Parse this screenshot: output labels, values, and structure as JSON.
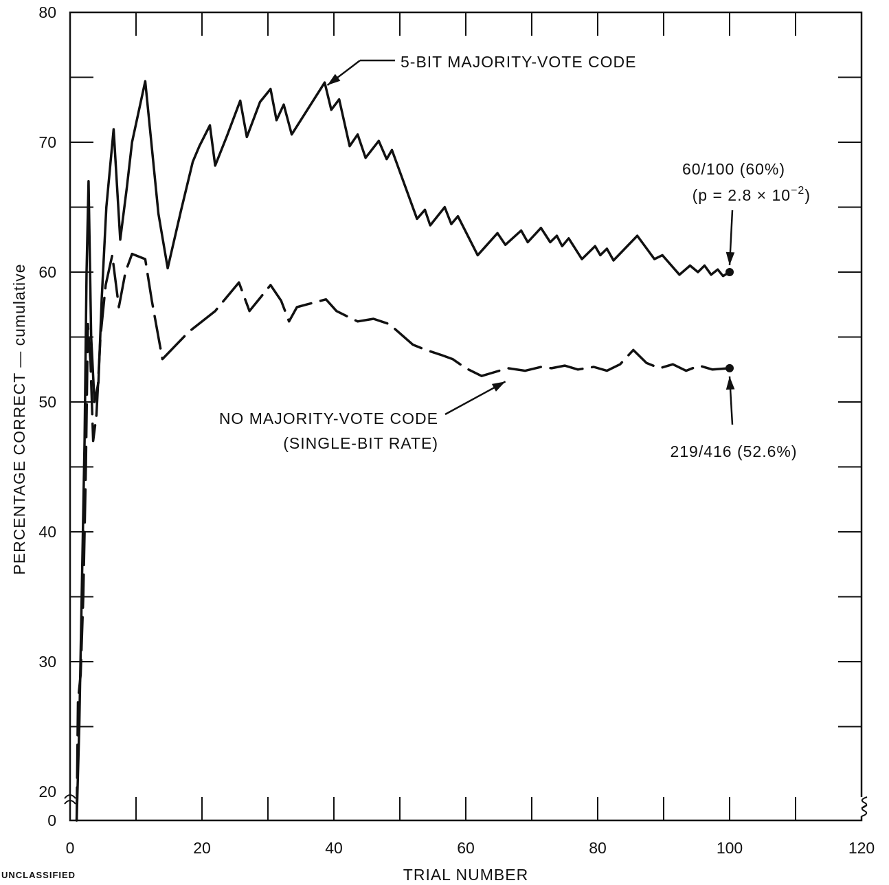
{
  "chart_data": {
    "type": "line",
    "title": "",
    "xlabel": "TRIAL NUMBER",
    "ylabel": "PERCENTAGE CORRECT — cumulative",
    "xlim": [
      0,
      120
    ],
    "ylim_display": [
      20,
      80
    ],
    "y_axis_break": "axis broken between 0 and 20",
    "x_ticks": [
      "0",
      "20",
      "40",
      "60",
      "80",
      "100",
      "120"
    ],
    "y_ticks": [
      "0",
      "20",
      "30",
      "40",
      "50",
      "60",
      "70",
      "80"
    ],
    "grid": false,
    "corner_note": "UNCLASSIFIED",
    "series": [
      {
        "name": "5-BIT MAJORITY-VOTE CODE",
        "style": "solid",
        "points": [
          [
            1,
            0
          ],
          [
            1.4,
            25
          ],
          [
            2.2,
            47
          ],
          [
            2.5,
            60
          ],
          [
            2.8,
            67
          ],
          [
            3.2,
            55
          ],
          [
            3.7,
            50
          ],
          [
            4.3,
            51.5
          ],
          [
            4.8,
            58
          ],
          [
            5.5,
            65
          ],
          [
            6.6,
            71
          ],
          [
            7.6,
            62.5
          ],
          [
            8.6,
            66.5
          ],
          [
            9.4,
            70
          ],
          [
            11.4,
            74.7
          ],
          [
            13.4,
            64.5
          ],
          [
            14.8,
            60.3
          ],
          [
            16.8,
            64.7
          ],
          [
            18.6,
            68.5
          ],
          [
            19.6,
            69.7
          ],
          [
            21.2,
            71.3
          ],
          [
            22.0,
            68.2
          ],
          [
            23.8,
            70.5
          ],
          [
            25.8,
            73.2
          ],
          [
            26.8,
            70.4
          ],
          [
            28.8,
            73.1
          ],
          [
            30.4,
            74.1
          ],
          [
            31.3,
            71.7
          ],
          [
            32.4,
            72.9
          ],
          [
            33.6,
            70.6
          ],
          [
            38.6,
            74.6
          ],
          [
            39.6,
            72.5
          ],
          [
            40.8,
            73.3
          ],
          [
            42.4,
            69.7
          ],
          [
            43.6,
            70.6
          ],
          [
            44.8,
            68.8
          ],
          [
            46.8,
            70.1
          ],
          [
            48.0,
            68.7
          ],
          [
            48.8,
            69.4
          ],
          [
            52.6,
            64.1
          ],
          [
            53.8,
            64.8
          ],
          [
            54.6,
            63.6
          ],
          [
            56.8,
            65.0
          ],
          [
            57.8,
            63.7
          ],
          [
            58.8,
            64.3
          ],
          [
            61.8,
            61.3
          ],
          [
            64.8,
            63.0
          ],
          [
            66.0,
            62.1
          ],
          [
            68.4,
            63.2
          ],
          [
            69.4,
            62.3
          ],
          [
            71.4,
            63.4
          ],
          [
            72.8,
            62.3
          ],
          [
            73.8,
            62.8
          ],
          [
            74.6,
            62.0
          ],
          [
            75.6,
            62.6
          ],
          [
            77.6,
            61.0
          ],
          [
            79.6,
            62.0
          ],
          [
            80.4,
            61.3
          ],
          [
            81.4,
            61.8
          ],
          [
            82.4,
            60.9
          ],
          [
            86.0,
            62.8
          ],
          [
            88.6,
            61.0
          ],
          [
            89.8,
            61.3
          ],
          [
            92.4,
            59.8
          ],
          [
            94.0,
            60.5
          ],
          [
            95.2,
            60.0
          ],
          [
            96.2,
            60.5
          ],
          [
            97.2,
            59.8
          ],
          [
            98.2,
            60.2
          ],
          [
            99.0,
            59.7
          ],
          [
            100,
            60.0
          ]
        ]
      },
      {
        "name": "NO MAJORITY-VOTE CODE (SINGLE-BIT RATE)",
        "style": "dashed",
        "points": [
          [
            1,
            0
          ],
          [
            1.2,
            27
          ],
          [
            1.6,
            29
          ],
          [
            2.0,
            35
          ],
          [
            2.4,
            45
          ],
          [
            2.7,
            56
          ],
          [
            3.1,
            53
          ],
          [
            3.5,
            47
          ],
          [
            4.0,
            49
          ],
          [
            4.6,
            55
          ],
          [
            5.4,
            59
          ],
          [
            6.4,
            61.3
          ],
          [
            7.4,
            57.3
          ],
          [
            8.4,
            60.0
          ],
          [
            9.4,
            61.4
          ],
          [
            11.4,
            61.0
          ],
          [
            12.4,
            57.8
          ],
          [
            14.0,
            53.3
          ],
          [
            18.0,
            55.4
          ],
          [
            22.0,
            57.0
          ],
          [
            25.6,
            59.2
          ],
          [
            27.2,
            57.0
          ],
          [
            30.4,
            59.0
          ],
          [
            32.0,
            57.8
          ],
          [
            33.2,
            56.2
          ],
          [
            34.4,
            57.3
          ],
          [
            35.8,
            57.5
          ],
          [
            38.8,
            57.9
          ],
          [
            40.4,
            57.0
          ],
          [
            42.0,
            56.6
          ],
          [
            43.6,
            56.2
          ],
          [
            46.0,
            56.4
          ],
          [
            48.4,
            56.0
          ],
          [
            52.0,
            54.4
          ],
          [
            54.0,
            54.0
          ],
          [
            56.4,
            53.6
          ],
          [
            58.0,
            53.3
          ],
          [
            60.0,
            52.6
          ],
          [
            62.4,
            52.0
          ],
          [
            64.4,
            52.3
          ],
          [
            66.4,
            52.6
          ],
          [
            69.0,
            52.4
          ],
          [
            71.4,
            52.7
          ],
          [
            73.0,
            52.6
          ],
          [
            75.0,
            52.8
          ],
          [
            77.0,
            52.5
          ],
          [
            79.4,
            52.7
          ],
          [
            81.4,
            52.4
          ],
          [
            83.4,
            52.9
          ],
          [
            85.4,
            54.0
          ],
          [
            87.4,
            53.0
          ],
          [
            89.4,
            52.6
          ],
          [
            91.4,
            52.9
          ],
          [
            93.4,
            52.4
          ],
          [
            95.4,
            52.8
          ],
          [
            97.4,
            52.5
          ],
          [
            100,
            52.6
          ]
        ]
      }
    ],
    "annotations": [
      {
        "text": "5-BIT MAJORITY-VOTE CODE",
        "points_to": [
          38.8,
          74.6
        ]
      },
      {
        "text": "NO MAJORITY-VOTE CODE",
        "text_line2": "(SINGLE-BIT RATE)",
        "points_to": [
          66.0,
          52.1
        ]
      },
      {
        "text": "60/100 (60%)",
        "text_line2": "(p = 2.8 × 10",
        "superscript": "−2",
        "closing": ")",
        "points_to": [
          100,
          60.0
        ]
      },
      {
        "text": "219/416 (52.6%)",
        "points_to": [
          100,
          52.6
        ]
      }
    ]
  }
}
